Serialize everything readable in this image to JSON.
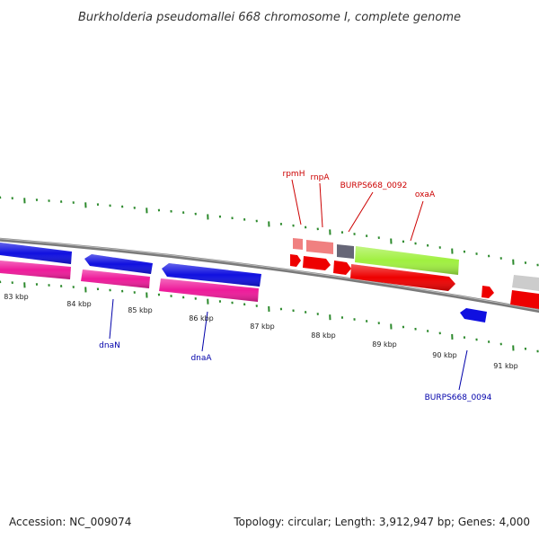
{
  "title": "Burkholderia pseudomallei 668 chromosome I, complete genome",
  "footer": {
    "accession": "Accession: NC_009074",
    "summary": "Topology: circular; Length: 3,912,947 bp; Genes: 4,000"
  },
  "colors": {
    "backbone": "#8a8a8a",
    "tick": "#2d8a2d",
    "label_forward": "#cc0000",
    "label_reverse": "#0000aa",
    "cds_blue": "#1010e0",
    "cds_red": "#ee0000",
    "rna_pink": "#f080a0",
    "rna_magenta": "#ee1a9a",
    "cds_green": "#a0f040",
    "cds_darkgray": "#666677",
    "cds_lightgray": "#cccccc"
  },
  "scale_labels": [
    "83 kbp",
    "84 kbp",
    "85 kbp",
    "86 kbp",
    "87 kbp",
    "88 kbp",
    "89 kbp",
    "90 kbp",
    "91 kbp"
  ],
  "gene_labels_forward": [
    "rpmH",
    "rnpA",
    "BURPS668_0092",
    "oxaA"
  ],
  "gene_labels_reverse": [
    "dnaN",
    "dnaA",
    "BURPS668_0094"
  ]
}
